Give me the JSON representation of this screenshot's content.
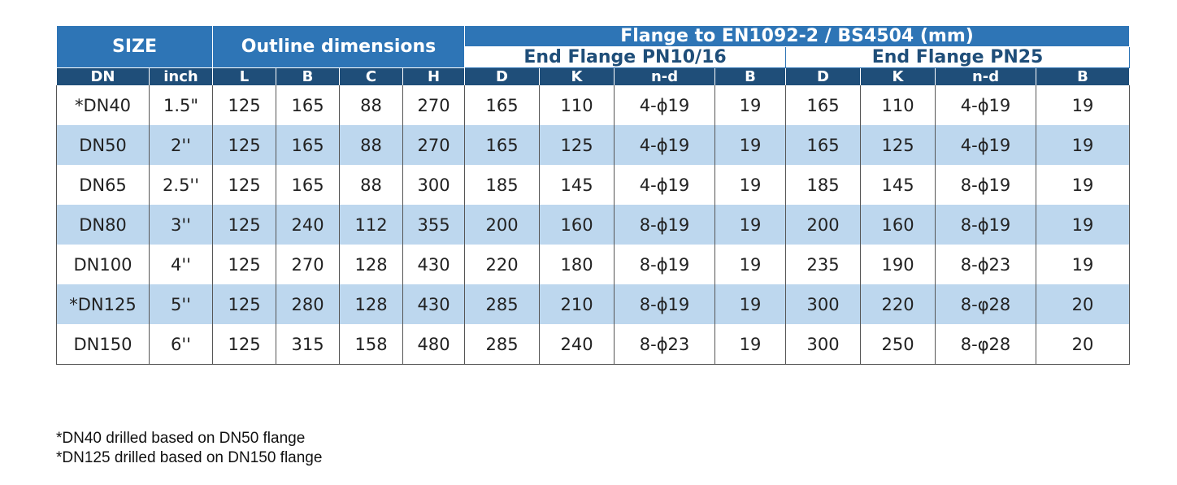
{
  "header": {
    "size": "SIZE",
    "outline": "Outline dimensions",
    "flange": "Flange to EN1092-2 / BS4504 (mm)",
    "pn1016": "End Flange PN10/16",
    "pn25": "End Flange PN25"
  },
  "columns": [
    "DN",
    "inch",
    "L",
    "B",
    "C",
    "H",
    "D",
    "K",
    "n-d",
    "B",
    "D",
    "K",
    "n-d",
    "B"
  ],
  "rows": [
    [
      "*DN40",
      "1.5\"",
      "125",
      "165",
      "88",
      "270",
      "165",
      "110",
      "4-ϕ19",
      "19",
      "165",
      "110",
      "4-ϕ19",
      "19"
    ],
    [
      "DN50",
      "2''",
      "125",
      "165",
      "88",
      "270",
      "165",
      "125",
      "4-ϕ19",
      "19",
      "165",
      "125",
      "4-ϕ19",
      "19"
    ],
    [
      "DN65",
      "2.5''",
      "125",
      "165",
      "88",
      "300",
      "185",
      "145",
      "4-ϕ19",
      "19",
      "185",
      "145",
      "8-ϕ19",
      "19"
    ],
    [
      "DN80",
      "3''",
      "125",
      "240",
      "112",
      "355",
      "200",
      "160",
      "8-ϕ19",
      "19",
      "200",
      "160",
      "8-ϕ19",
      "19"
    ],
    [
      "DN100",
      "4''",
      "125",
      "270",
      "128",
      "430",
      "220",
      "180",
      "8-ϕ19",
      "19",
      "235",
      "190",
      "8-ϕ23",
      "19"
    ],
    [
      "*DN125",
      "5''",
      "125",
      "280",
      "128",
      "430",
      "285",
      "210",
      "8-ϕ19",
      "19",
      "300",
      "220",
      "8-φ28",
      "20"
    ],
    [
      "DN150",
      "6''",
      "125",
      "315",
      "158",
      "480",
      "285",
      "240",
      "8-ϕ23",
      "19",
      "300",
      "250",
      "8-φ28",
      "20"
    ]
  ],
  "notes": [
    "*DN40 drilled based on DN50 flange",
    "*DN125 drilled based on DN150 flange"
  ],
  "colors": {
    "header_blue": "#2e75b6",
    "subheader_navy": "#1f4e79",
    "row_stripe": "#bdd7ee"
  }
}
